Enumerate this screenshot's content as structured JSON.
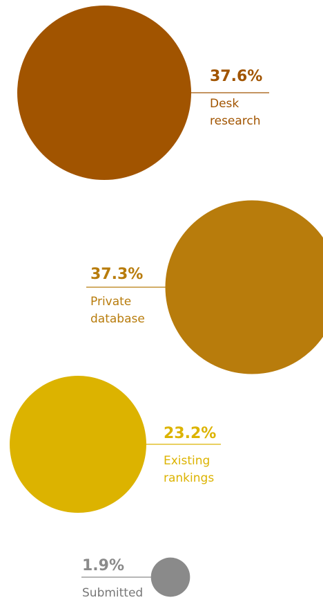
{
  "chart_data": {
    "type": "bubble",
    "unit": "%",
    "points": [
      {
        "value": 37.6,
        "label": "37.6%",
        "label_lines": [
          "Desk",
          "research"
        ],
        "color": "#a15400"
      },
      {
        "value": 37.3,
        "label": "37.3%",
        "label_lines": [
          "Private",
          "database"
        ],
        "color": "#b87c0c"
      },
      {
        "value": 23.2,
        "label": "23.2%",
        "label_lines": [
          "Existing",
          "rankings"
        ],
        "color": "#dcb300"
      },
      {
        "value": 1.9,
        "label": "1.9%",
        "label_lines": [
          "Submitted"
        ],
        "color": "#8a8a8a"
      }
    ]
  }
}
